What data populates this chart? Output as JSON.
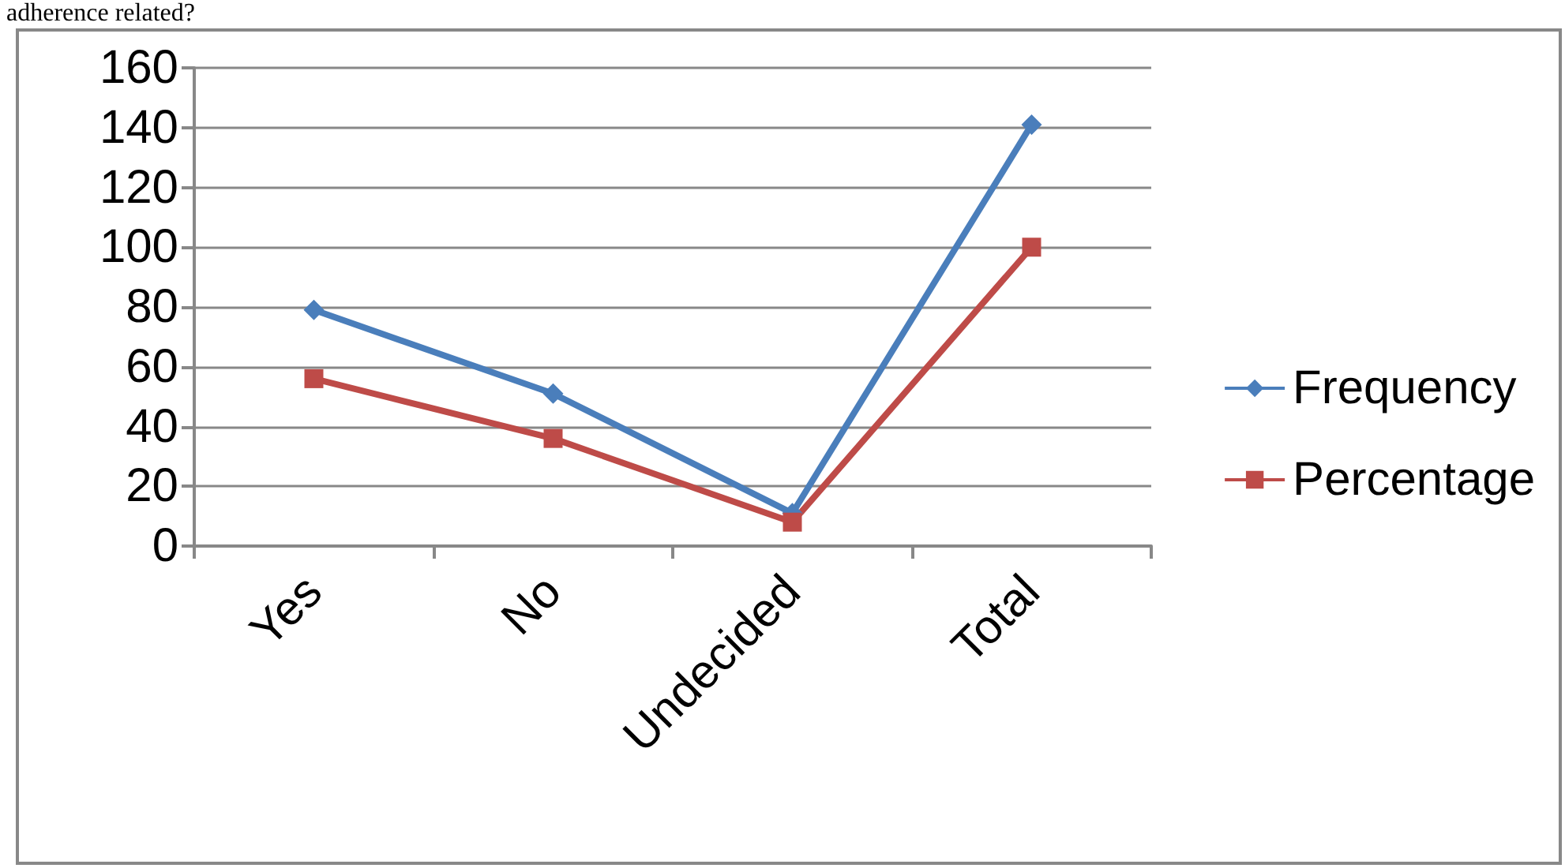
{
  "chart_data": {
    "type": "line",
    "title": "adherence related?",
    "categories": [
      "Yes",
      "No",
      "Undecided",
      "Total"
    ],
    "series": [
      {
        "name": "Frequency",
        "color": "#4a7ebb",
        "marker": "diamond",
        "values": [
          79,
          51,
          11,
          141
        ]
      },
      {
        "name": "Percentage",
        "color": "#be4b48",
        "marker": "square",
        "values": [
          56,
          36,
          8,
          100
        ]
      }
    ],
    "ylim": [
      0,
      160
    ],
    "yticks": [
      0,
      20,
      40,
      60,
      80,
      100,
      120,
      140,
      160
    ],
    "grid": "y",
    "legend": "right"
  }
}
